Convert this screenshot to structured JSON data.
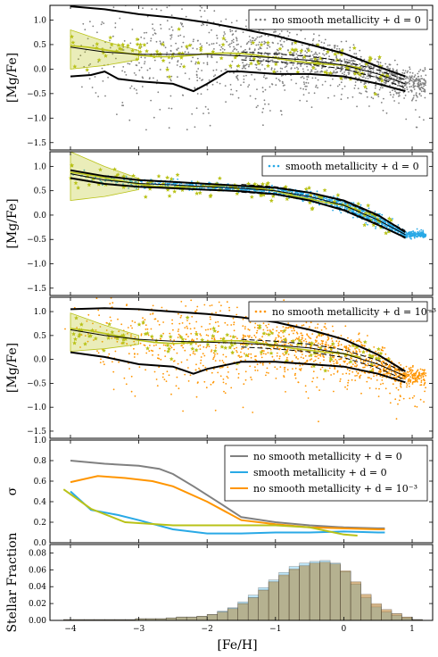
{
  "figure": {
    "xlabel": "[Fe/H]",
    "xticks": [
      "−4",
      "−3",
      "−2",
      "−1",
      "0",
      "1"
    ],
    "colors": {
      "gray": "#808080",
      "blue": "#29a9e6",
      "orange": "#ff9500",
      "olive": "#b9c218",
      "black": "#000000"
    }
  },
  "chart_data": [
    {
      "type": "scatter",
      "panel": "top",
      "ylabel": "[Mg/Fe]",
      "yticks": [
        "1.0",
        "0.5",
        "0.0",
        "−0.5",
        "−1.0",
        "−1.5"
      ],
      "xlim": [
        -4.3,
        1.3
      ],
      "ylim": [
        -1.65,
        1.3
      ],
      "legend": "no smooth metallicity + d = 0",
      "legend_position": "upper right",
      "point_color": "gray",
      "median": [
        [
          -4.0,
          0.45
        ],
        [
          -3.5,
          0.35
        ],
        [
          -3.0,
          0.3
        ],
        [
          -2.5,
          0.3
        ],
        [
          -2.0,
          0.3
        ],
        [
          -1.5,
          0.27
        ],
        [
          -1.0,
          0.23
        ],
        [
          -0.5,
          0.18
        ],
        [
          0.0,
          0.08
        ],
        [
          0.5,
          -0.1
        ],
        [
          0.9,
          -0.3
        ]
      ],
      "upper": [
        [
          -4.0,
          1.28
        ],
        [
          -3.5,
          1.22
        ],
        [
          -3.0,
          1.12
        ],
        [
          -2.5,
          1.05
        ],
        [
          -2.0,
          0.95
        ],
        [
          -1.5,
          0.82
        ],
        [
          -1.0,
          0.68
        ],
        [
          -0.5,
          0.5
        ],
        [
          0.0,
          0.32
        ],
        [
          0.5,
          0.05
        ],
        [
          0.9,
          -0.15
        ]
      ],
      "lower": [
        [
          -4.0,
          -0.15
        ],
        [
          -3.7,
          -0.12
        ],
        [
          -3.5,
          -0.05
        ],
        [
          -3.3,
          -0.2
        ],
        [
          -3.0,
          -0.25
        ],
        [
          -2.5,
          -0.3
        ],
        [
          -2.2,
          -0.45
        ],
        [
          -2.0,
          -0.3
        ],
        [
          -1.7,
          -0.05
        ],
        [
          -1.5,
          -0.05
        ],
        [
          -1.0,
          -0.1
        ],
        [
          -0.5,
          -0.1
        ],
        [
          0.0,
          -0.15
        ],
        [
          0.5,
          -0.3
        ],
        [
          0.9,
          -0.45
        ]
      ]
    },
    {
      "type": "scatter",
      "panel": "second",
      "ylabel": "[Mg/Fe]",
      "yticks": [
        "1.0",
        "0.5",
        "0.0",
        "−0.5",
        "−1.0",
        "−1.5"
      ],
      "xlim": [
        -4.3,
        1.3
      ],
      "ylim": [
        -1.65,
        1.3
      ],
      "legend": "smooth metallicity + d = 0",
      "legend_position": "upper right",
      "point_color": "blue",
      "median": [
        [
          -4.0,
          0.85
        ],
        [
          -3.5,
          0.72
        ],
        [
          -3.0,
          0.65
        ],
        [
          -2.5,
          0.62
        ],
        [
          -2.0,
          0.58
        ],
        [
          -1.5,
          0.55
        ],
        [
          -1.0,
          0.5
        ],
        [
          -0.5,
          0.38
        ],
        [
          0.0,
          0.2
        ],
        [
          0.5,
          -0.1
        ],
        [
          0.9,
          -0.4
        ]
      ],
      "upper": [
        [
          -4.0,
          0.92
        ],
        [
          -3.5,
          0.8
        ],
        [
          -3.0,
          0.72
        ],
        [
          -2.5,
          0.68
        ],
        [
          -2.0,
          0.64
        ],
        [
          -1.5,
          0.6
        ],
        [
          -1.0,
          0.56
        ],
        [
          -0.5,
          0.46
        ],
        [
          0.0,
          0.3
        ],
        [
          0.5,
          0.0
        ],
        [
          0.9,
          -0.35
        ]
      ],
      "lower": [
        [
          -4.0,
          0.76
        ],
        [
          -3.5,
          0.64
        ],
        [
          -3.0,
          0.58
        ],
        [
          -2.5,
          0.55
        ],
        [
          -2.0,
          0.52
        ],
        [
          -1.5,
          0.49
        ],
        [
          -1.0,
          0.43
        ],
        [
          -0.5,
          0.3
        ],
        [
          0.0,
          0.1
        ],
        [
          0.5,
          -0.2
        ],
        [
          0.9,
          -0.46
        ]
      ]
    },
    {
      "type": "scatter",
      "panel": "third",
      "ylabel": "[Mg/Fe]",
      "yticks": [
        "1.0",
        "0.5",
        "0.0",
        "−0.5",
        "−1.0",
        "−1.5"
      ],
      "xlim": [
        -4.3,
        1.3
      ],
      "ylim": [
        -1.65,
        1.3
      ],
      "legend": "no smooth metallicity + d = 10⁻³",
      "legend_position": "upper right",
      "point_color": "orange",
      "median": [
        [
          -4.0,
          0.62
        ],
        [
          -3.5,
          0.5
        ],
        [
          -3.0,
          0.42
        ],
        [
          -2.5,
          0.38
        ],
        [
          -2.0,
          0.36
        ],
        [
          -1.5,
          0.34
        ],
        [
          -1.0,
          0.3
        ],
        [
          -0.5,
          0.24
        ],
        [
          0.0,
          0.12
        ],
        [
          0.5,
          -0.1
        ],
        [
          0.9,
          -0.35
        ]
      ],
      "upper": [
        [
          -4.0,
          1.05
        ],
        [
          -3.5,
          1.07
        ],
        [
          -3.0,
          1.05
        ],
        [
          -2.5,
          1.0
        ],
        [
          -2.0,
          0.95
        ],
        [
          -1.5,
          0.88
        ],
        [
          -1.0,
          0.78
        ],
        [
          -0.5,
          0.62
        ],
        [
          0.0,
          0.42
        ],
        [
          0.5,
          0.1
        ],
        [
          0.9,
          -0.25
        ]
      ],
      "lower": [
        [
          -4.0,
          0.15
        ],
        [
          -3.5,
          0.05
        ],
        [
          -3.0,
          -0.1
        ],
        [
          -2.5,
          -0.15
        ],
        [
          -2.2,
          -0.3
        ],
        [
          -2.0,
          -0.2
        ],
        [
          -1.5,
          -0.05
        ],
        [
          -1.0,
          -0.05
        ],
        [
          -0.5,
          -0.1
        ],
        [
          0.0,
          -0.15
        ],
        [
          0.5,
          -0.3
        ],
        [
          0.9,
          -0.48
        ]
      ]
    },
    {
      "type": "line",
      "panel": "sigma",
      "ylabel": "σ",
      "yticks": [
        "1.0",
        "0.8",
        "0.6",
        "0.4",
        "0.2",
        "0.0"
      ],
      "xlim": [
        -4.3,
        1.3
      ],
      "ylim": [
        0,
        1.0
      ],
      "legend_position": "upper right",
      "series": [
        {
          "name": "no smooth metallicity + d = 0",
          "color": "gray",
          "points": [
            [
              -4.0,
              0.8
            ],
            [
              -3.5,
              0.77
            ],
            [
              -3.0,
              0.75
            ],
            [
              -2.7,
              0.72
            ],
            [
              -2.5,
              0.67
            ],
            [
              -2.2,
              0.55
            ],
            [
              -1.8,
              0.38
            ],
            [
              -1.5,
              0.25
            ],
            [
              -1.0,
              0.2
            ],
            [
              -0.5,
              0.17
            ],
            [
              0.0,
              0.15
            ],
            [
              0.5,
              0.14
            ],
            [
              0.6,
              0.14
            ]
          ]
        },
        {
          "name": "smooth metallicity + d = 0",
          "color": "blue",
          "points": [
            [
              -4.0,
              0.5
            ],
            [
              -3.7,
              0.32
            ],
            [
              -3.3,
              0.27
            ],
            [
              -3.0,
              0.22
            ],
            [
              -2.5,
              0.13
            ],
            [
              -2.0,
              0.09
            ],
            [
              -1.5,
              0.09
            ],
            [
              -1.0,
              0.1
            ],
            [
              -0.5,
              0.1
            ],
            [
              0.0,
              0.11
            ],
            [
              0.5,
              0.1
            ],
            [
              0.6,
              0.1
            ]
          ]
        },
        {
          "name": "no smooth metallicity + d = 10⁻³",
          "color": "orange",
          "points": [
            [
              -4.0,
              0.59
            ],
            [
              -3.6,
              0.65
            ],
            [
              -3.2,
              0.63
            ],
            [
              -2.8,
              0.6
            ],
            [
              -2.5,
              0.55
            ],
            [
              -2.0,
              0.4
            ],
            [
              -1.5,
              0.22
            ],
            [
              -1.0,
              0.18
            ],
            [
              -0.5,
              0.15
            ],
            [
              0.0,
              0.14
            ],
            [
              0.5,
              0.13
            ],
            [
              0.6,
              0.13
            ]
          ]
        },
        {
          "points": [
            [
              -4.1,
              0.52
            ],
            [
              -3.7,
              0.33
            ],
            [
              -3.2,
              0.2
            ],
            [
              -2.5,
              0.17
            ],
            [
              -2.0,
              0.17
            ],
            [
              -1.5,
              0.17
            ],
            [
              -1.0,
              0.17
            ],
            [
              -0.5,
              0.15
            ],
            [
              0.0,
              0.08
            ],
            [
              0.2,
              0.07
            ]
          ],
          "color": "olive"
        }
      ]
    },
    {
      "type": "bar",
      "panel": "fraction",
      "ylabel": "Stellar Fraction",
      "yticks": [
        "0.08",
        "0.06",
        "0.04",
        "0.02",
        "0.00"
      ],
      "xlim": [
        -4.3,
        1.3
      ],
      "ylim": [
        0,
        0.09
      ],
      "bin_width": 0.15,
      "bin_starts": [
        -4.1,
        -3.95,
        -3.8,
        -3.65,
        -3.5,
        -3.35,
        -3.2,
        -3.05,
        -2.9,
        -2.75,
        -2.6,
        -2.45,
        -2.3,
        -2.15,
        -2.0,
        -1.85,
        -1.7,
        -1.55,
        -1.4,
        -1.25,
        -1.1,
        -0.95,
        -0.8,
        -0.65,
        -0.5,
        -0.35,
        -0.2,
        -0.05,
        0.1,
        0.25,
        0.4,
        0.55,
        0.7,
        0.85,
        1.0
      ],
      "series": [
        {
          "name": "no smooth metallicity + d = 0",
          "color": "gray",
          "values": [
            0.001,
            0.001,
            0.001,
            0.001,
            0.001,
            0.001,
            0.001,
            0.002,
            0.002,
            0.002,
            0.003,
            0.004,
            0.004,
            0.005,
            0.007,
            0.01,
            0.014,
            0.02,
            0.027,
            0.036,
            0.045,
            0.053,
            0.06,
            0.064,
            0.067,
            0.068,
            0.066,
            0.058,
            0.045,
            0.03,
            0.019,
            0.012,
            0.008,
            0.004,
            0.001
          ]
        },
        {
          "name": "smooth metallicity + d = 0",
          "color": "blue",
          "values": [
            0.001,
            0.001,
            0.001,
            0.001,
            0.001,
            0.001,
            0.001,
            0.002,
            0.002,
            0.002,
            0.003,
            0.004,
            0.004,
            0.005,
            0.007,
            0.011,
            0.015,
            0.022,
            0.03,
            0.039,
            0.048,
            0.057,
            0.064,
            0.068,
            0.07,
            0.071,
            0.068,
            0.058,
            0.043,
            0.027,
            0.016,
            0.01,
            0.006,
            0.003,
            0.001
          ]
        },
        {
          "name": "no smooth metallicity + d = 10⁻³",
          "color": "orange",
          "values": [
            0.001,
            0.001,
            0.001,
            0.001,
            0.001,
            0.001,
            0.001,
            0.002,
            0.002,
            0.002,
            0.003,
            0.004,
            0.004,
            0.005,
            0.007,
            0.01,
            0.014,
            0.02,
            0.027,
            0.036,
            0.046,
            0.054,
            0.061,
            0.065,
            0.068,
            0.069,
            0.067,
            0.059,
            0.046,
            0.031,
            0.02,
            0.013,
            0.008,
            0.004,
            0.001
          ]
        }
      ]
    }
  ]
}
